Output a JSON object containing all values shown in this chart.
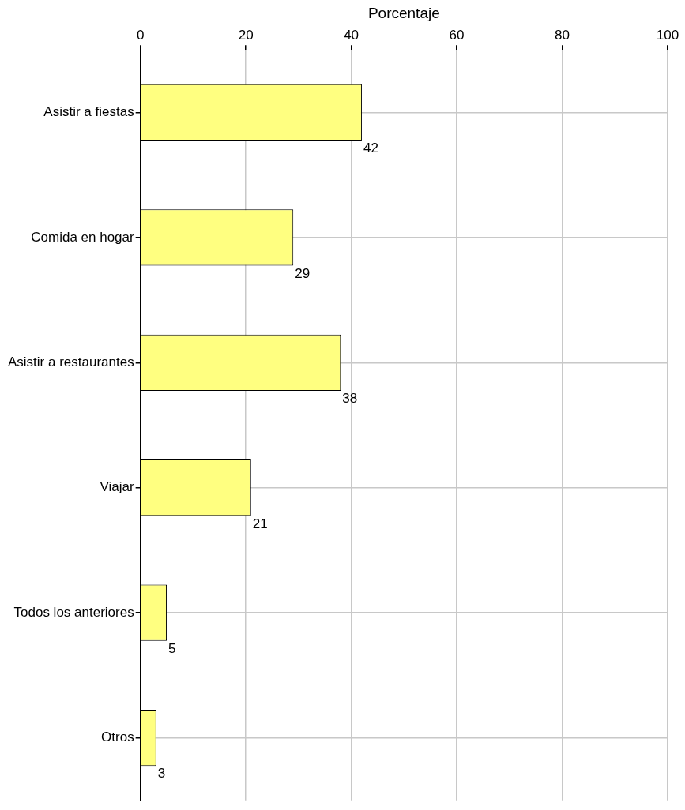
{
  "chart_data": {
    "type": "bar",
    "orientation": "horizontal",
    "xlabel": "Porcentaje",
    "categories": [
      "Asistir a fiestas",
      "Comida en hogar",
      "Asistir a restaurantes",
      "Viajar",
      "Todos los anteriores",
      "Otros"
    ],
    "values": [
      42,
      29,
      38,
      21,
      5,
      3
    ],
    "color": "#ffff80",
    "xlim": [
      0,
      100
    ],
    "xticks": [
      0,
      20,
      40,
      60,
      80,
      100
    ],
    "grid": true,
    "data_labels": true
  }
}
